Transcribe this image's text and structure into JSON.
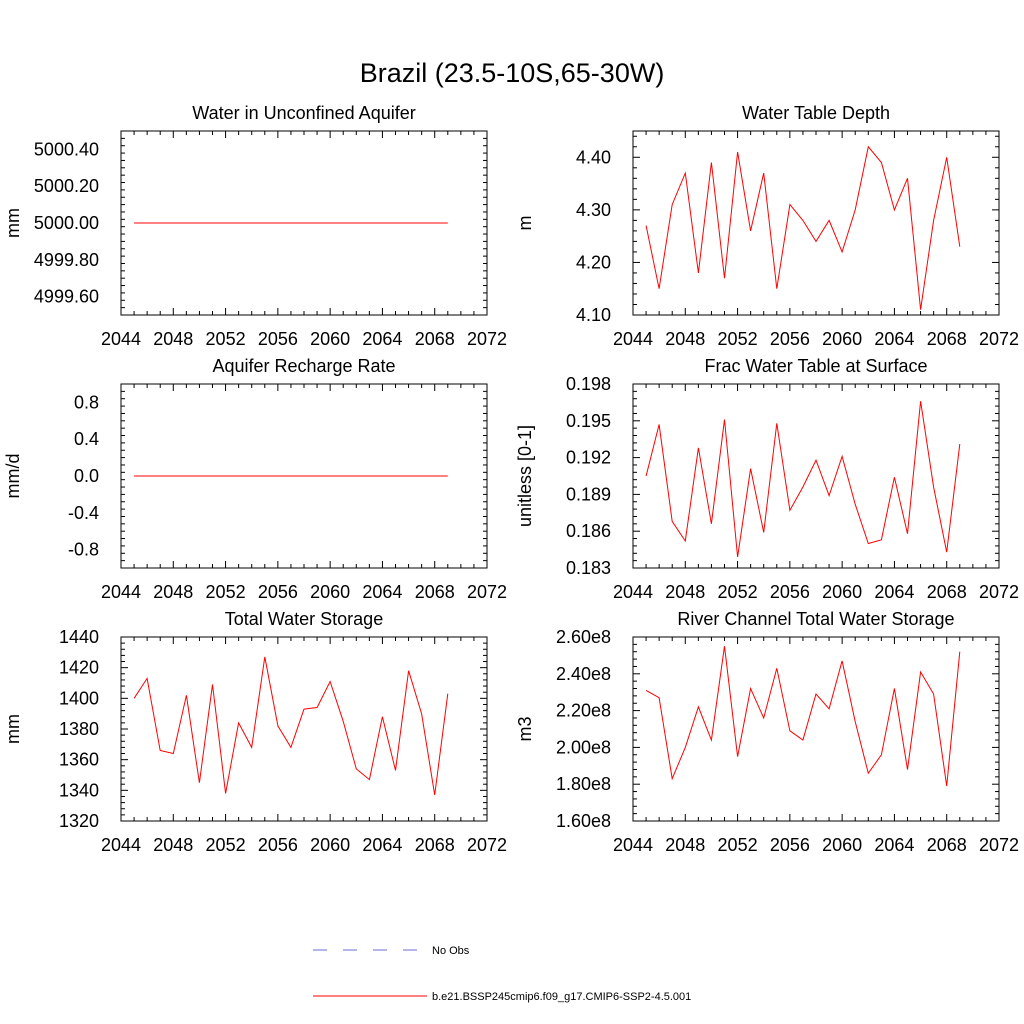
{
  "page_title": "Brazil (23.5-10S,65-30W)",
  "colors": {
    "model_line": "#ff0000",
    "obs_line": "#6b6bd6",
    "axis": "#000000"
  },
  "legend": {
    "obs_label": "No Obs",
    "model_label": "b.e21.BSSP245cmip6.f09_g17.CMIP6-SSP2-4.5.001"
  },
  "chart_data": [
    {
      "type": "line",
      "title": "Water in Unconfined Aquifer",
      "ylabel": "mm",
      "xlim": [
        2044,
        2072
      ],
      "ylim": [
        4999.5,
        5000.5
      ],
      "xticks": [
        2044,
        2048,
        2052,
        2056,
        2060,
        2064,
        2068,
        2072
      ],
      "yticks": [
        4999.6,
        4999.8,
        5000.0,
        5000.2,
        5000.4
      ],
      "ytick_labels": [
        "4999.60",
        "4999.80",
        "5000.00",
        "5000.20",
        "5000.40"
      ],
      "x": [
        2045,
        2046,
        2047,
        2048,
        2049,
        2050,
        2051,
        2052,
        2053,
        2054,
        2055,
        2056,
        2057,
        2058,
        2059,
        2060,
        2061,
        2062,
        2063,
        2064,
        2065,
        2066,
        2067,
        2068,
        2069
      ],
      "values": [
        5000,
        5000,
        5000,
        5000,
        5000,
        5000,
        5000,
        5000,
        5000,
        5000,
        5000,
        5000,
        5000,
        5000,
        5000,
        5000,
        5000,
        5000,
        5000,
        5000,
        5000,
        5000,
        5000,
        5000,
        5000
      ]
    },
    {
      "type": "line",
      "title": "Water Table Depth",
      "ylabel": "m",
      "xlim": [
        2044,
        2072
      ],
      "ylim": [
        4.1,
        4.45
      ],
      "xticks": [
        2044,
        2048,
        2052,
        2056,
        2060,
        2064,
        2068,
        2072
      ],
      "yticks": [
        4.1,
        4.2,
        4.3,
        4.4
      ],
      "ytick_labels": [
        "4.10",
        "4.20",
        "4.30",
        "4.40"
      ],
      "x": [
        2045,
        2046,
        2047,
        2048,
        2049,
        2050,
        2051,
        2052,
        2053,
        2054,
        2055,
        2056,
        2057,
        2058,
        2059,
        2060,
        2061,
        2062,
        2063,
        2064,
        2065,
        2066,
        2067,
        2068,
        2069
      ],
      "values": [
        4.27,
        4.15,
        4.31,
        4.37,
        4.18,
        4.39,
        4.17,
        4.41,
        4.26,
        4.37,
        4.15,
        4.31,
        4.28,
        4.24,
        4.28,
        4.22,
        4.3,
        4.42,
        4.39,
        4.3,
        4.36,
        4.11,
        4.28,
        4.4,
        4.23
      ]
    },
    {
      "type": "line",
      "title": "Aquifer Recharge Rate",
      "ylabel": "mm/d",
      "xlim": [
        2044,
        2072
      ],
      "ylim": [
        -1.0,
        1.0
      ],
      "xticks": [
        2044,
        2048,
        2052,
        2056,
        2060,
        2064,
        2068,
        2072
      ],
      "yticks": [
        -0.8,
        -0.4,
        0.0,
        0.4,
        0.8
      ],
      "ytick_labels": [
        "-0.8",
        "-0.4",
        "0.0",
        "0.4",
        "0.8"
      ],
      "x": [
        2045,
        2046,
        2047,
        2048,
        2049,
        2050,
        2051,
        2052,
        2053,
        2054,
        2055,
        2056,
        2057,
        2058,
        2059,
        2060,
        2061,
        2062,
        2063,
        2064,
        2065,
        2066,
        2067,
        2068,
        2069
      ],
      "values": [
        0,
        0,
        0,
        0,
        0,
        0,
        0,
        0,
        0,
        0,
        0,
        0,
        0,
        0,
        0,
        0,
        0,
        0,
        0,
        0,
        0,
        0,
        0,
        0,
        0
      ]
    },
    {
      "type": "line",
      "title": "Frac Water Table at Surface",
      "ylabel": "unitless [0-1]",
      "xlim": [
        2044,
        2072
      ],
      "ylim": [
        0.183,
        0.198
      ],
      "xticks": [
        2044,
        2048,
        2052,
        2056,
        2060,
        2064,
        2068,
        2072
      ],
      "yticks": [
        0.183,
        0.186,
        0.189,
        0.192,
        0.195,
        0.198
      ],
      "ytick_labels": [
        "0.183",
        "0.186",
        "0.189",
        "0.192",
        "0.195",
        "0.198"
      ],
      "x": [
        2045,
        2046,
        2047,
        2048,
        2049,
        2050,
        2051,
        2052,
        2053,
        2054,
        2055,
        2056,
        2057,
        2058,
        2059,
        2060,
        2061,
        2062,
        2063,
        2064,
        2065,
        2066,
        2067,
        2068,
        2069
      ],
      "values": [
        0.1905,
        0.1947,
        0.1868,
        0.1852,
        0.1928,
        0.1866,
        0.1951,
        0.1839,
        0.1911,
        0.1859,
        0.1948,
        0.1877,
        0.1896,
        0.1918,
        0.1889,
        0.1921,
        0.1882,
        0.185,
        0.1853,
        0.1904,
        0.1858,
        0.1966,
        0.1896,
        0.1843,
        0.1931
      ]
    },
    {
      "type": "line",
      "title": "Total Water Storage",
      "ylabel": "mm",
      "xlim": [
        2044,
        2072
      ],
      "ylim": [
        1320,
        1440
      ],
      "xticks": [
        2044,
        2048,
        2052,
        2056,
        2060,
        2064,
        2068,
        2072
      ],
      "yticks": [
        1320,
        1340,
        1360,
        1380,
        1400,
        1420,
        1440
      ],
      "ytick_labels": [
        "1320",
        "1340",
        "1360",
        "1380",
        "1400",
        "1420",
        "1440"
      ],
      "x": [
        2045,
        2046,
        2047,
        2048,
        2049,
        2050,
        2051,
        2052,
        2053,
        2054,
        2055,
        2056,
        2057,
        2058,
        2059,
        2060,
        2061,
        2062,
        2063,
        2064,
        2065,
        2066,
        2067,
        2068,
        2069
      ],
      "values": [
        1400,
        1413,
        1366,
        1364,
        1402,
        1345,
        1409,
        1338,
        1384,
        1368,
        1427,
        1382,
        1368,
        1393,
        1394,
        1411,
        1385,
        1354,
        1347,
        1388,
        1353,
        1418,
        1390,
        1337,
        1403
      ]
    },
    {
      "type": "line",
      "title": "River Channel Total Water Storage",
      "ylabel": "m3",
      "xlim": [
        2044,
        2072
      ],
      "ylim": [
        160000000.0,
        260000000.0
      ],
      "xticks": [
        2044,
        2048,
        2052,
        2056,
        2060,
        2064,
        2068,
        2072
      ],
      "yticks": [
        160000000.0,
        180000000.0,
        200000000.0,
        220000000.0,
        240000000.0,
        260000000.0
      ],
      "ytick_labels": [
        "1.60e8",
        "1.80e8",
        "2.00e8",
        "2.20e8",
        "2.40e8",
        "2.60e8"
      ],
      "x": [
        2045,
        2046,
        2047,
        2048,
        2049,
        2050,
        2051,
        2052,
        2053,
        2054,
        2055,
        2056,
        2057,
        2058,
        2059,
        2060,
        2061,
        2062,
        2063,
        2064,
        2065,
        2066,
        2067,
        2068,
        2069
      ],
      "values": [
        231000000.0,
        227000000.0,
        183000000.0,
        200000000.0,
        222000000.0,
        204000000.0,
        255000000.0,
        195000000.0,
        232000000.0,
        216000000.0,
        243000000.0,
        209000000.0,
        204000000.0,
        229000000.0,
        221000000.0,
        247000000.0,
        214000000.0,
        186000000.0,
        196000000.0,
        232000000.0,
        188000000.0,
        241000000.0,
        229000000.0,
        179000000.0,
        252000000.0
      ]
    }
  ]
}
